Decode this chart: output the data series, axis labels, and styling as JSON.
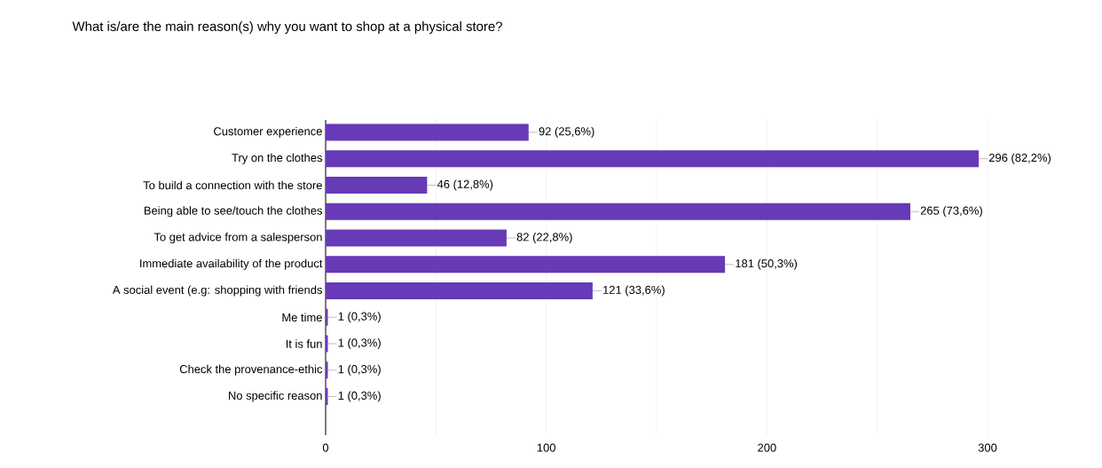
{
  "chart_data": {
    "type": "bar",
    "orientation": "horizontal",
    "title": "What is/are the main reason(s) why you want to shop at a physical store?",
    "categories": [
      "Customer experience",
      "Try on the clothes",
      "To build a connection with the store",
      "Being able to see/touch the clothes",
      "To get advice from a salesperson",
      "Immediate availability of the product",
      "A social event (e.g: shopping with friends",
      "Me time",
      "It is fun",
      "Check the provenance-ethic",
      "No specific reason"
    ],
    "values": [
      92,
      296,
      46,
      265,
      82,
      181,
      121,
      1,
      1,
      1,
      1
    ],
    "value_labels": [
      "92 (25,6%)",
      "296 (82,2%)",
      "46 (12,8%)",
      "265 (73,6%)",
      "82 (22,8%)",
      "181 (50,3%)",
      "121 (33,6%)",
      "1 (0,3%)",
      "1 (0,3%)",
      "1 (0,3%)",
      "1 (0,3%)"
    ],
    "color": "#673ab7",
    "xlim": [
      0,
      300
    ],
    "xticks": [
      0,
      {
        "value": 50,
        "label": null
      },
      100,
      {
        "value": 150,
        "label": null
      },
      200,
      {
        "value": 250,
        "label": null
      },
      300
    ],
    "grid": "x"
  }
}
